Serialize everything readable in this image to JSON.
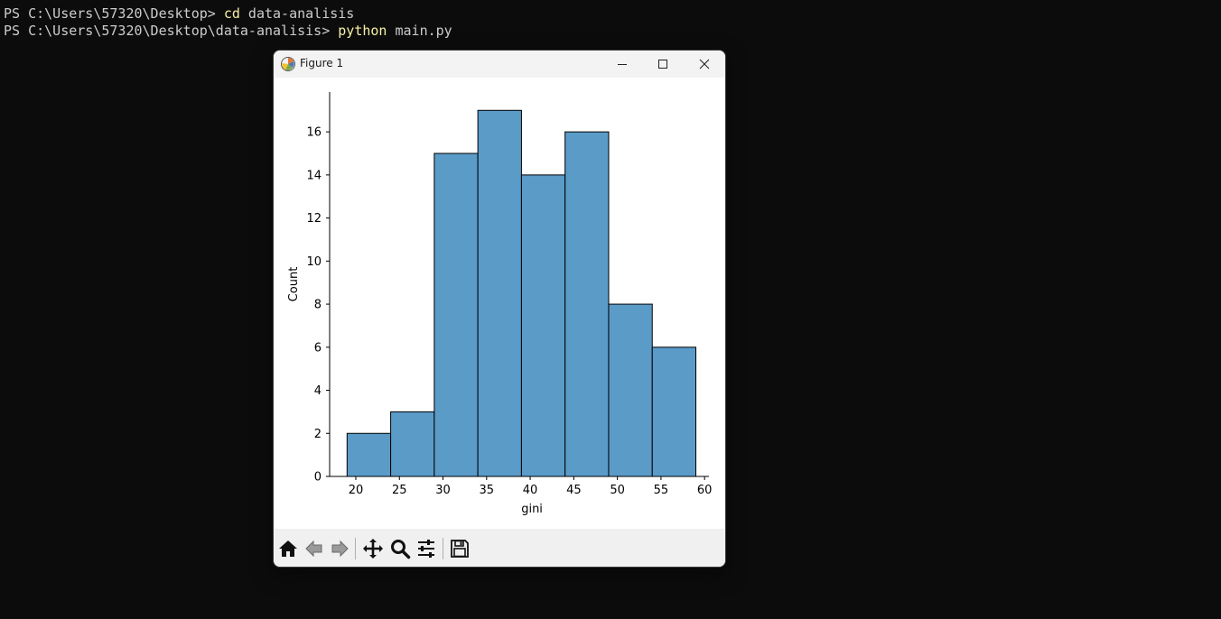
{
  "terminal": {
    "lines": [
      {
        "prompt": "PS C:\\Users\\57320\\Desktop> ",
        "cmd": "cd",
        "arg": " data-analisis"
      },
      {
        "prompt": "PS C:\\Users\\57320\\Desktop\\data-analisis> ",
        "cmd": "python",
        "arg": " main.py"
      }
    ]
  },
  "window": {
    "title": "Figure 1"
  },
  "toolbar": {
    "tools": [
      "home-icon",
      "back-icon",
      "forward-icon",
      "pan-icon",
      "zoom-icon",
      "configure-subplots-icon",
      "save-icon"
    ]
  },
  "chart_data": {
    "type": "bar",
    "title": "",
    "xlabel": "gini",
    "ylabel": "Count",
    "bins": [
      {
        "start": 19,
        "end": 24,
        "count": 2
      },
      {
        "start": 24,
        "end": 29,
        "count": 3
      },
      {
        "start": 29,
        "end": 34,
        "count": 15
      },
      {
        "start": 34,
        "end": 39,
        "count": 17
      },
      {
        "start": 39,
        "end": 44,
        "count": 14
      },
      {
        "start": 44,
        "end": 49,
        "count": 16
      },
      {
        "start": 49,
        "end": 54,
        "count": 8
      },
      {
        "start": 54,
        "end": 59,
        "count": 6
      }
    ],
    "xticks": [
      20,
      25,
      30,
      35,
      40,
      45,
      50,
      55,
      60
    ],
    "yticks": [
      0,
      2,
      4,
      6,
      8,
      10,
      12,
      14,
      16
    ],
    "xlim": [
      17,
      60.5
    ],
    "ylim": [
      0,
      17.85
    ],
    "bar_color": "#5a9bc8",
    "edge_color": "#000000",
    "grid": false,
    "legend": "none"
  }
}
